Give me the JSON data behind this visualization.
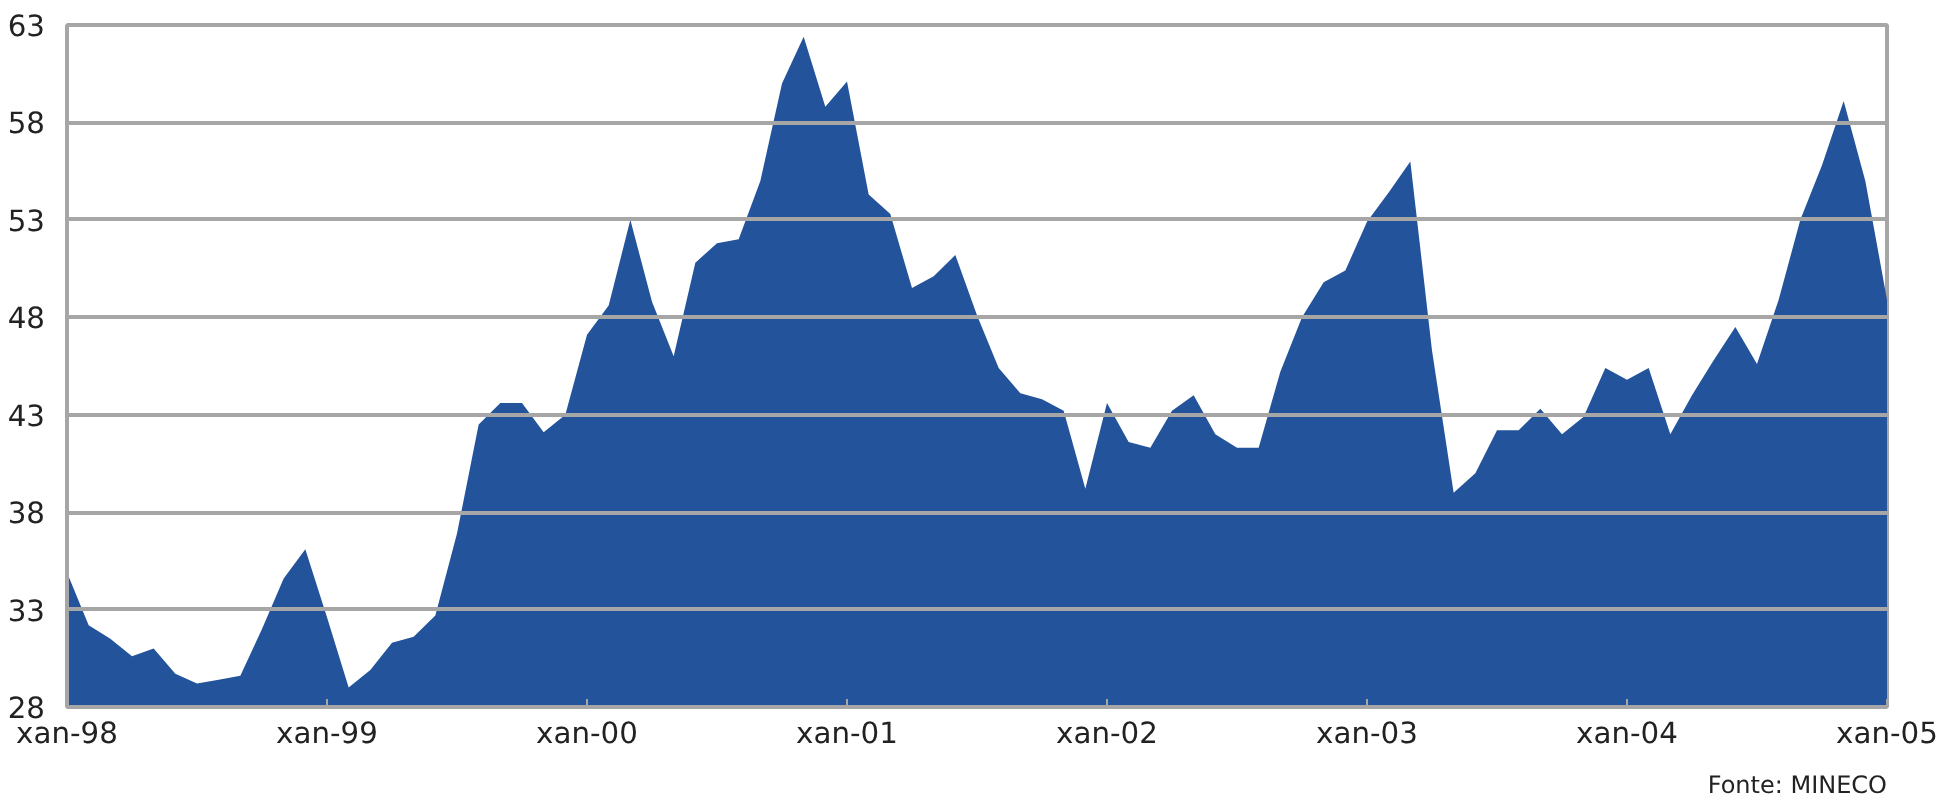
{
  "chart_data": {
    "type": "area",
    "x": [
      "1998-01",
      "1998-02",
      "1998-03",
      "1998-04",
      "1998-05",
      "1998-06",
      "1998-07",
      "1998-08",
      "1998-09",
      "1998-10",
      "1998-11",
      "1998-12",
      "1999-01",
      "1999-02",
      "1999-03",
      "1999-04",
      "1999-05",
      "1999-06",
      "1999-07",
      "1999-08",
      "1999-09",
      "1999-10",
      "1999-11",
      "1999-12",
      "2000-01",
      "2000-02",
      "2000-03",
      "2000-04",
      "2000-05",
      "2000-06",
      "2000-07",
      "2000-08",
      "2000-09",
      "2000-10",
      "2000-11",
      "2000-12",
      "2001-01",
      "2001-02",
      "2001-03",
      "2001-04",
      "2001-05",
      "2001-06",
      "2001-07",
      "2001-08",
      "2001-09",
      "2001-10",
      "2001-11",
      "2001-12",
      "2002-01",
      "2002-02",
      "2002-03",
      "2002-04",
      "2002-05",
      "2002-06",
      "2002-07",
      "2002-08",
      "2002-09",
      "2002-10",
      "2002-11",
      "2002-12",
      "2003-01",
      "2003-02",
      "2003-03",
      "2003-04",
      "2003-05",
      "2003-06",
      "2003-07",
      "2003-08",
      "2003-09",
      "2003-10",
      "2003-11",
      "2003-12",
      "2004-01",
      "2004-02",
      "2004-03",
      "2004-04",
      "2004-05",
      "2004-06",
      "2004-07",
      "2004-08",
      "2004-09",
      "2004-10",
      "2004-11",
      "2004-12",
      "2005-01"
    ],
    "values": [
      34.9,
      32.2,
      31.5,
      30.6,
      31.0,
      29.7,
      29.2,
      29.4,
      29.6,
      32.0,
      34.6,
      36.1,
      32.6,
      29.0,
      29.9,
      31.3,
      31.6,
      32.7,
      36.9,
      42.5,
      43.6,
      43.6,
      42.1,
      43.0,
      47.1,
      48.6,
      53.0,
      48.8,
      46.0,
      50.8,
      51.8,
      52.0,
      55.0,
      60.0,
      62.4,
      58.8,
      60.1,
      54.3,
      53.3,
      49.5,
      50.1,
      51.2,
      48.1,
      45.4,
      44.1,
      43.8,
      43.2,
      39.2,
      43.6,
      41.6,
      41.3,
      43.2,
      44.0,
      42.0,
      41.3,
      41.3,
      45.2,
      48.0,
      49.8,
      50.4,
      52.9,
      54.4,
      56.0,
      46.3,
      39.0,
      40.0,
      42.2,
      42.2,
      43.3,
      42.0,
      42.9,
      45.4,
      44.8,
      45.4,
      42.0,
      44.0,
      45.8,
      47.5,
      45.6,
      48.9,
      53.0,
      55.8,
      59.1,
      55.0,
      48.9
    ],
    "color": "#23539b",
    "xlim": [
      "1998-01",
      "2005-01"
    ],
    "xticks": [
      {
        "value": "1998-01",
        "label": "xan-98"
      },
      {
        "value": "1999-01",
        "label": "xan-99"
      },
      {
        "value": "2000-01",
        "label": "xan-00"
      },
      {
        "value": "2001-01",
        "label": "xan-01"
      },
      {
        "value": "2002-01",
        "label": "xan-02"
      },
      {
        "value": "2003-01",
        "label": "xan-03"
      },
      {
        "value": "2004-01",
        "label": "xan-04"
      },
      {
        "value": "2005-01",
        "label": "xan-05"
      }
    ],
    "ylim": [
      28,
      63
    ],
    "yticks": [
      28,
      33,
      38,
      43,
      48,
      53,
      58,
      63
    ],
    "grid": "y",
    "annotations": [
      "Fonte: MINECO"
    ]
  }
}
